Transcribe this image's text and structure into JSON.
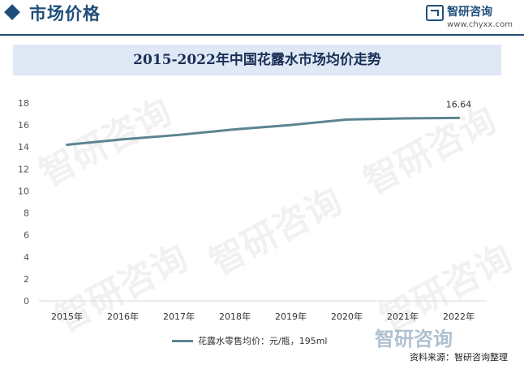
{
  "header": {
    "section_title": "市场价格",
    "logo_name": "智研咨询",
    "logo_url": "www.chyxx.com"
  },
  "watermark_text": "智研咨询",
  "colors": {
    "accent": "#1f4e79",
    "title_band": "#dfe8f5",
    "series_line": "#5b8591"
  },
  "source": "资料来源：智研咨询整理",
  "chart_data": {
    "type": "line",
    "title": "2015-2022年中国花露水市场均价走势",
    "categories": [
      "2015年",
      "2016年",
      "2017年",
      "2018年",
      "2019年",
      "2020年",
      "2021年",
      "2022年"
    ],
    "series": [
      {
        "name": "花露水零售均价：元/瓶，195ml",
        "values": [
          14.2,
          14.7,
          15.1,
          15.6,
          16.0,
          16.5,
          16.6,
          16.64
        ]
      }
    ],
    "data_labels": [
      {
        "index": 7,
        "text": "16.64"
      }
    ],
    "yticks": [
      0,
      2,
      4,
      6,
      8,
      10,
      12,
      14,
      16,
      18
    ],
    "ylim": [
      0,
      18
    ],
    "grid": false,
    "legend_position": "bottom"
  }
}
